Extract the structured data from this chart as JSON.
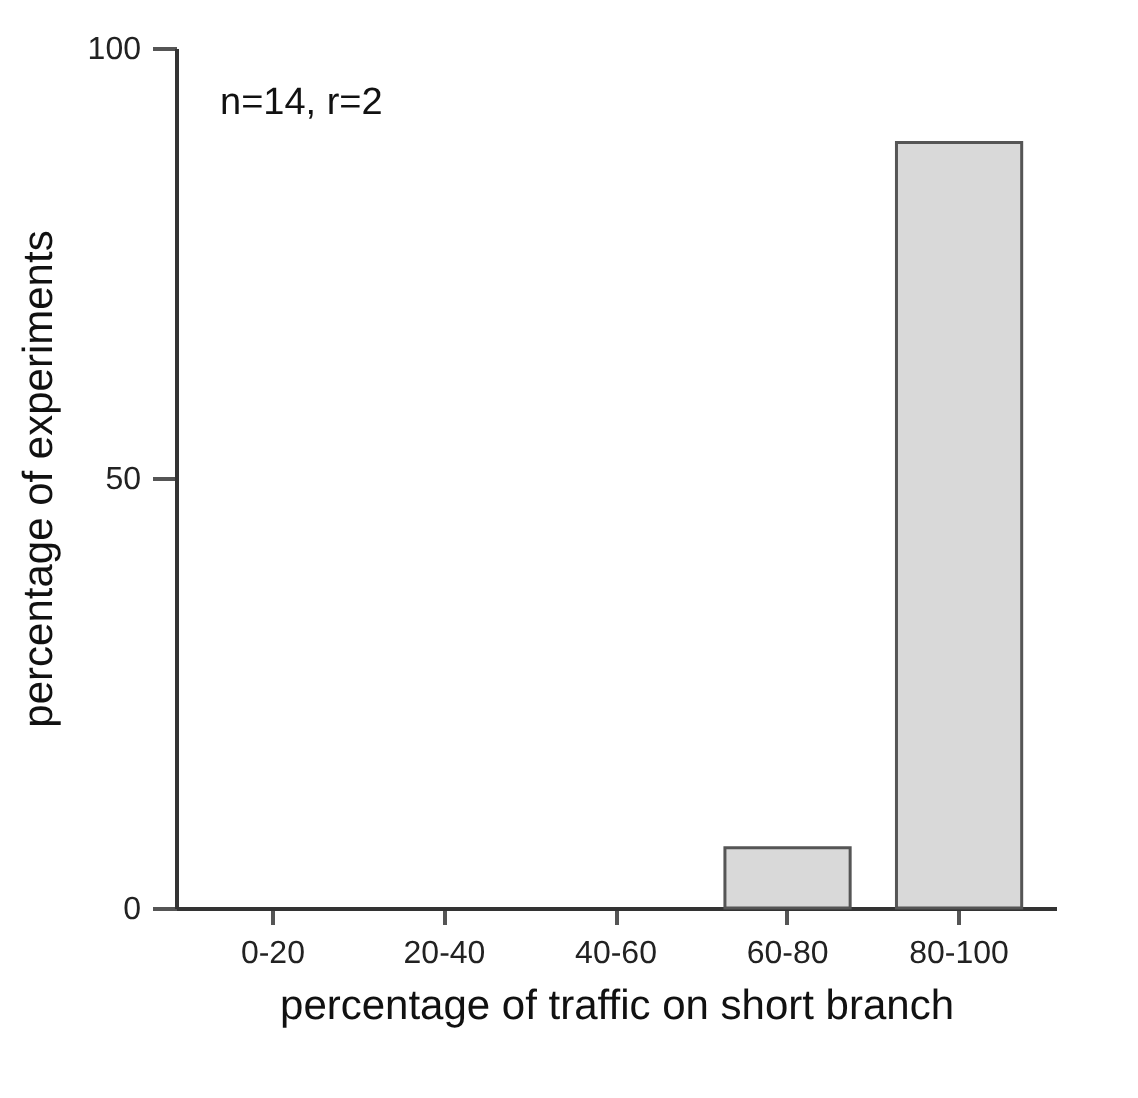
{
  "chart_data": {
    "type": "bar",
    "xlabel": "percentage of traffic on short branch",
    "ylabel": "percentage of experiments",
    "categories": [
      "0-20",
      "20-40",
      "40-60",
      "60-80",
      "80-100"
    ],
    "values": [
      0,
      0,
      0,
      7,
      89
    ],
    "color": "#d9d9d9",
    "ylim": [
      0,
      100
    ],
    "yticks": [
      0,
      50,
      100
    ],
    "grid": false,
    "annotations": [
      "n=14, r=2"
    ]
  }
}
